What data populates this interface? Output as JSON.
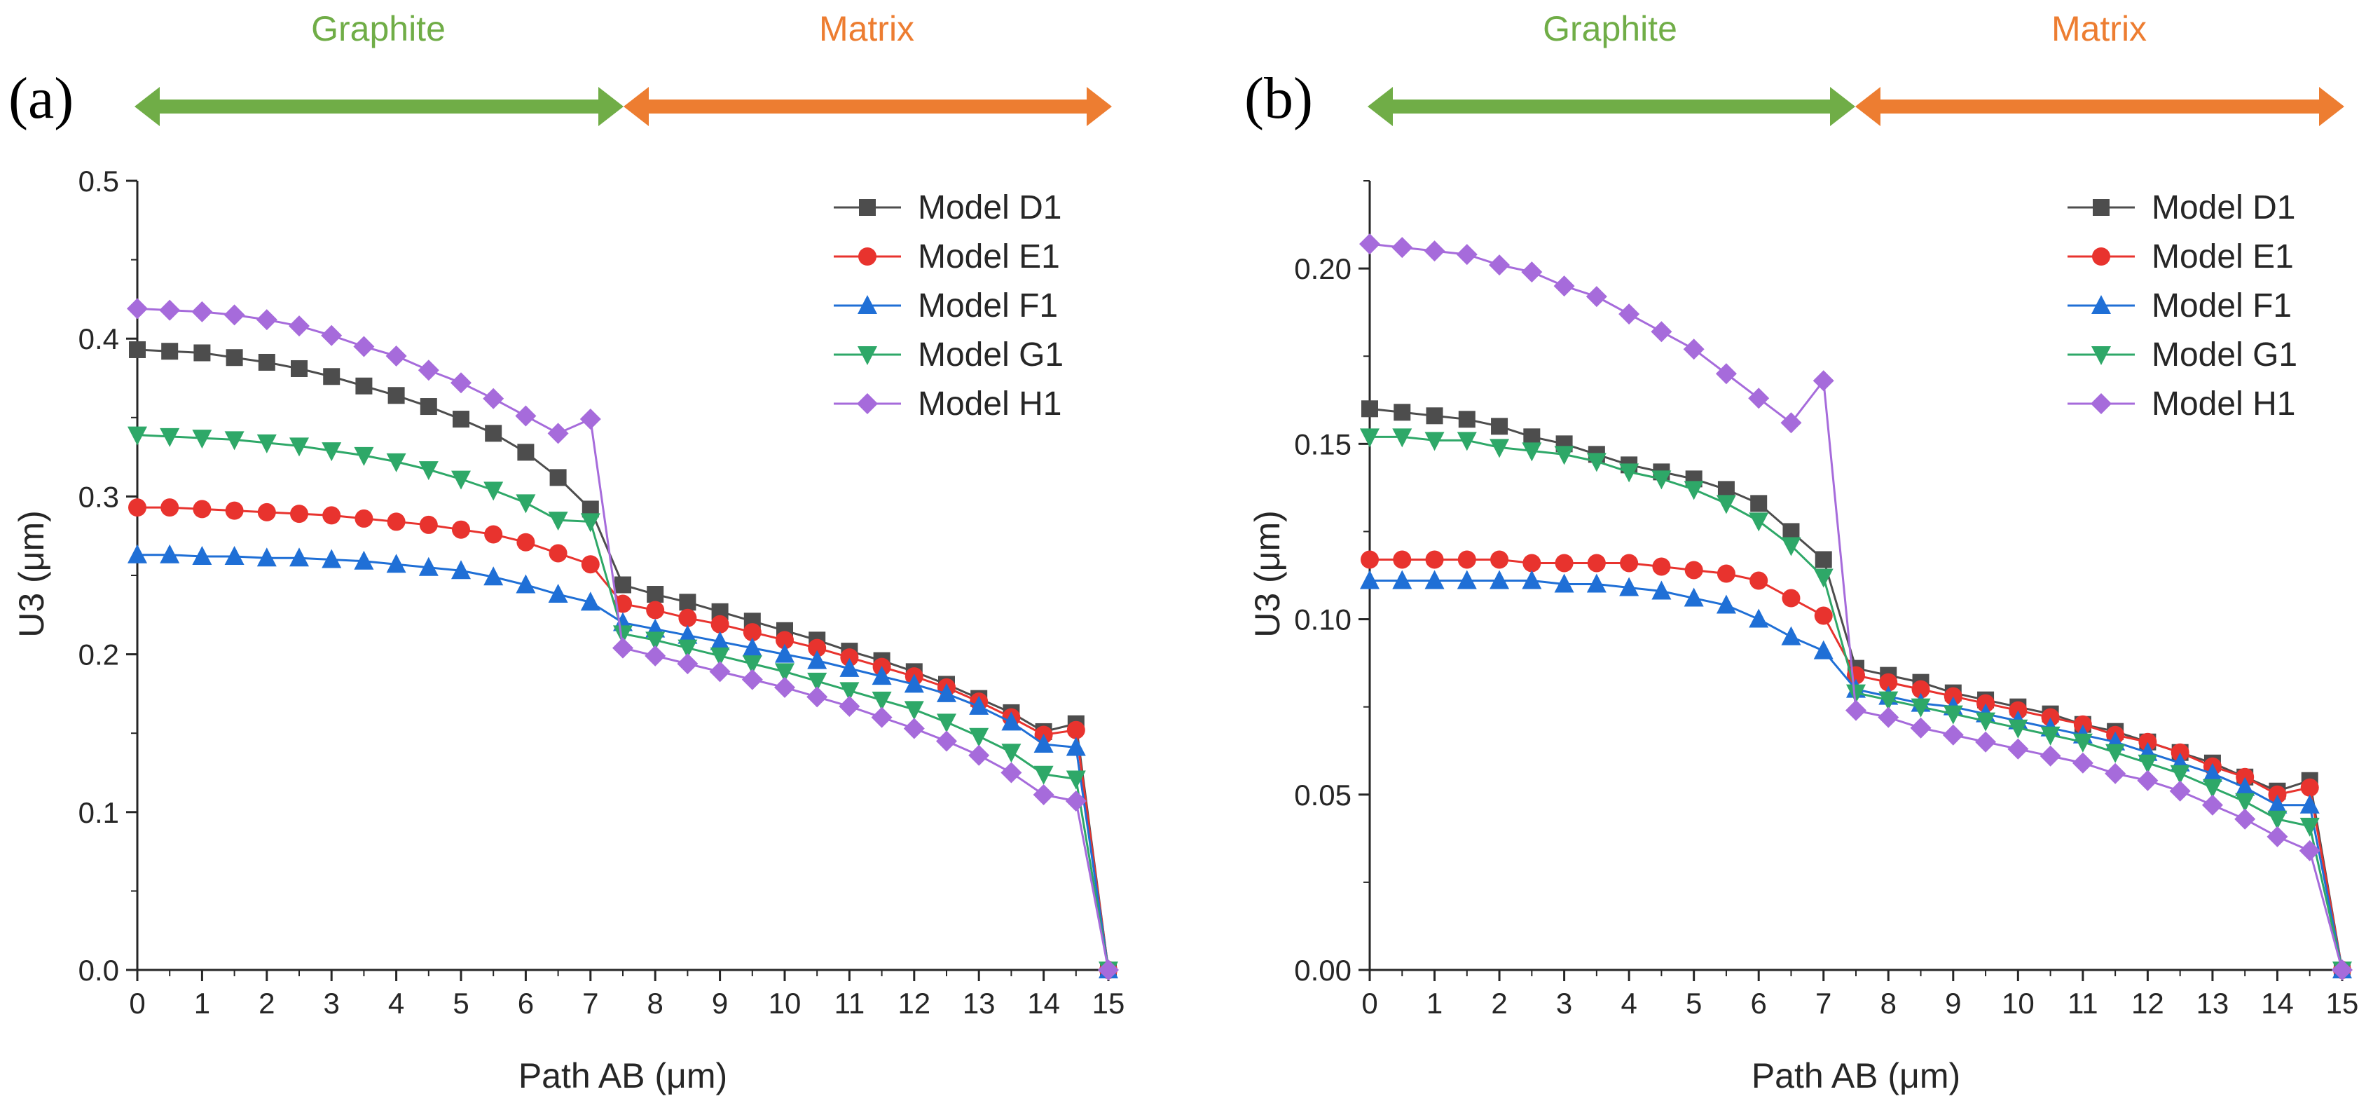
{
  "figure": {
    "region_labels": {
      "graphite": "Graphite",
      "matrix": "Matrix"
    },
    "colors": {
      "graphite": "#70ad47",
      "matrix": "#ed7d31",
      "axis": "#262626"
    }
  },
  "chart_data": [
    {
      "panel": "(a)",
      "type": "line",
      "title": "",
      "xlabel": "Path AB (μm)",
      "ylabel": "U3 (μm)",
      "xlim": [
        0,
        15
      ],
      "ylim": [
        0,
        0.5
      ],
      "xticks": [
        0,
        1,
        2,
        3,
        4,
        5,
        6,
        7,
        8,
        9,
        10,
        11,
        12,
        13,
        14,
        15
      ],
      "xtick_labels": [
        "0",
        "1",
        "2",
        "3",
        "4",
        "5",
        "6",
        "7",
        "8",
        "9",
        "10",
        "11",
        "12",
        "13",
        "14",
        "15"
      ],
      "yticks": [
        0,
        0.1,
        0.2,
        0.3,
        0.4,
        0.5
      ],
      "ytick_labels": [
        "0.0",
        "0.1",
        "0.2",
        "0.3",
        "0.4",
        "0.5"
      ],
      "legend_position": "top-right",
      "grid": false,
      "x": [
        0,
        0.5,
        1,
        1.5,
        2,
        2.5,
        3,
        3.5,
        4,
        4.5,
        5,
        5.5,
        6,
        6.5,
        7,
        7.5,
        8,
        8.5,
        9,
        9.5,
        10,
        10.5,
        11,
        11.5,
        12,
        12.5,
        13,
        13.5,
        14,
        14.5,
        15
      ],
      "series": [
        {
          "name": "Model D1",
          "color": "#4d4d4d",
          "marker": "square",
          "values": [
            0.393,
            0.392,
            0.391,
            0.388,
            0.385,
            0.381,
            0.376,
            0.37,
            0.364,
            0.357,
            0.349,
            0.34,
            0.328,
            0.312,
            0.292,
            0.244,
            0.238,
            0.233,
            0.227,
            0.221,
            0.215,
            0.209,
            0.202,
            0.196,
            0.189,
            0.181,
            0.172,
            0.163,
            0.151,
            0.156,
            0.0
          ]
        },
        {
          "name": "Model E1",
          "color": "#e8332e",
          "marker": "circle",
          "values": [
            0.293,
            0.293,
            0.292,
            0.291,
            0.29,
            0.289,
            0.288,
            0.286,
            0.284,
            0.282,
            0.279,
            0.276,
            0.271,
            0.264,
            0.257,
            0.232,
            0.228,
            0.223,
            0.219,
            0.214,
            0.209,
            0.204,
            0.198,
            0.192,
            0.186,
            0.179,
            0.17,
            0.16,
            0.149,
            0.152,
            0.0
          ]
        },
        {
          "name": "Model F1",
          "color": "#1f6fd6",
          "marker": "triangle-up",
          "values": [
            0.263,
            0.263,
            0.262,
            0.262,
            0.261,
            0.261,
            0.26,
            0.259,
            0.257,
            0.255,
            0.253,
            0.249,
            0.244,
            0.238,
            0.233,
            0.22,
            0.216,
            0.212,
            0.208,
            0.204,
            0.2,
            0.196,
            0.191,
            0.186,
            0.181,
            0.175,
            0.167,
            0.157,
            0.143,
            0.141,
            0.0
          ]
        },
        {
          "name": "Model G1",
          "color": "#2ea868",
          "marker": "triangle-down",
          "values": [
            0.339,
            0.338,
            0.337,
            0.336,
            0.334,
            0.332,
            0.329,
            0.326,
            0.322,
            0.317,
            0.311,
            0.304,
            0.296,
            0.285,
            0.284,
            0.213,
            0.209,
            0.204,
            0.199,
            0.194,
            0.189,
            0.183,
            0.177,
            0.171,
            0.165,
            0.157,
            0.148,
            0.138,
            0.124,
            0.121,
            0.0
          ]
        },
        {
          "name": "Model H1",
          "color": "#a66bdb",
          "marker": "diamond",
          "values": [
            0.419,
            0.418,
            0.417,
            0.415,
            0.412,
            0.408,
            0.402,
            0.395,
            0.389,
            0.38,
            0.372,
            0.362,
            0.351,
            0.34,
            0.349,
            0.204,
            0.199,
            0.194,
            0.189,
            0.184,
            0.179,
            0.173,
            0.167,
            0.16,
            0.153,
            0.145,
            0.136,
            0.125,
            0.111,
            0.107,
            0.0
          ]
        }
      ]
    },
    {
      "panel": "(b)",
      "type": "line",
      "title": "",
      "xlabel": "Path AB (μm)",
      "ylabel": "U3 (μm)",
      "xlim": [
        0,
        15
      ],
      "ylim": [
        0,
        0.225
      ],
      "xticks": [
        0,
        1,
        2,
        3,
        4,
        5,
        6,
        7,
        8,
        9,
        10,
        11,
        12,
        13,
        14,
        15
      ],
      "xtick_labels": [
        "0",
        "1",
        "2",
        "3",
        "4",
        "5",
        "6",
        "7",
        "8",
        "9",
        "10",
        "11",
        "12",
        "13",
        "14",
        "15"
      ],
      "yticks": [
        0,
        0.05,
        0.1,
        0.15,
        0.2
      ],
      "ytick_labels": [
        "0.00",
        "0.05",
        "0.10",
        "0.15",
        "0.20"
      ],
      "legend_position": "top-right",
      "grid": false,
      "x": [
        0,
        0.5,
        1,
        1.5,
        2,
        2.5,
        3,
        3.5,
        4,
        4.5,
        5,
        5.5,
        6,
        6.5,
        7,
        7.5,
        8,
        8.5,
        9,
        9.5,
        10,
        10.5,
        11,
        11.5,
        12,
        12.5,
        13,
        13.5,
        14,
        14.5,
        15
      ],
      "series": [
        {
          "name": "Model D1",
          "color": "#4d4d4d",
          "marker": "square",
          "values": [
            0.16,
            0.159,
            0.158,
            0.157,
            0.155,
            0.152,
            0.15,
            0.147,
            0.144,
            0.142,
            0.14,
            0.137,
            0.133,
            0.125,
            0.117,
            0.086,
            0.084,
            0.082,
            0.079,
            0.077,
            0.075,
            0.073,
            0.07,
            0.068,
            0.065,
            0.062,
            0.059,
            0.055,
            0.051,
            0.054,
            0.0
          ]
        },
        {
          "name": "Model E1",
          "color": "#e8332e",
          "marker": "circle",
          "values": [
            0.117,
            0.117,
            0.117,
            0.117,
            0.117,
            0.116,
            0.116,
            0.116,
            0.116,
            0.115,
            0.114,
            0.113,
            0.111,
            0.106,
            0.101,
            0.084,
            0.082,
            0.08,
            0.078,
            0.076,
            0.074,
            0.072,
            0.07,
            0.067,
            0.065,
            0.062,
            0.058,
            0.055,
            0.05,
            0.052,
            0.0
          ]
        },
        {
          "name": "Model F1",
          "color": "#1f6fd6",
          "marker": "triangle-up",
          "values": [
            0.111,
            0.111,
            0.111,
            0.111,
            0.111,
            0.111,
            0.11,
            0.11,
            0.109,
            0.108,
            0.106,
            0.104,
            0.1,
            0.095,
            0.091,
            0.08,
            0.078,
            0.076,
            0.075,
            0.073,
            0.071,
            0.069,
            0.067,
            0.065,
            0.062,
            0.059,
            0.056,
            0.052,
            0.047,
            0.047,
            0.0
          ]
        },
        {
          "name": "Model G1",
          "color": "#2ea868",
          "marker": "triangle-down",
          "values": [
            0.152,
            0.152,
            0.151,
            0.151,
            0.149,
            0.148,
            0.147,
            0.145,
            0.142,
            0.14,
            0.137,
            0.133,
            0.128,
            0.121,
            0.112,
            0.079,
            0.077,
            0.075,
            0.073,
            0.071,
            0.069,
            0.067,
            0.065,
            0.062,
            0.059,
            0.056,
            0.052,
            0.048,
            0.043,
            0.041,
            0.0
          ]
        },
        {
          "name": "Model H1",
          "color": "#a66bdb",
          "marker": "diamond",
          "values": [
            0.207,
            0.206,
            0.205,
            0.204,
            0.201,
            0.199,
            0.195,
            0.192,
            0.187,
            0.182,
            0.177,
            0.17,
            0.163,
            0.156,
            0.168,
            0.074,
            0.072,
            0.069,
            0.067,
            0.065,
            0.063,
            0.061,
            0.059,
            0.056,
            0.054,
            0.051,
            0.047,
            0.043,
            0.038,
            0.034,
            0.0
          ]
        }
      ]
    }
  ]
}
